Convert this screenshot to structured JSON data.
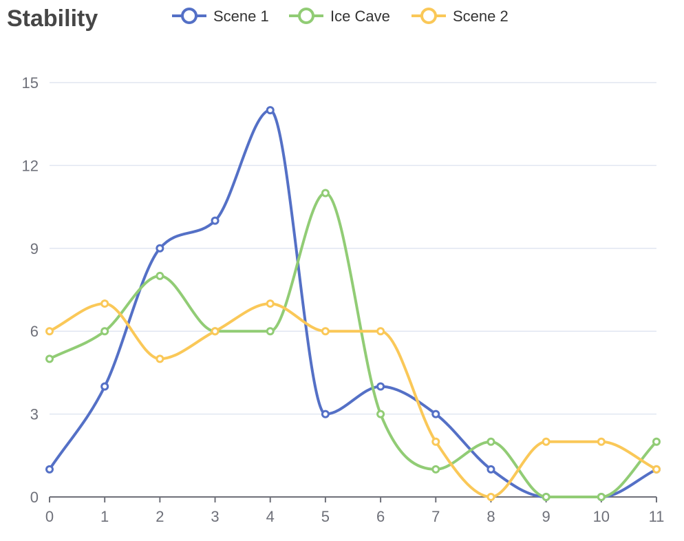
{
  "chart_data": {
    "type": "line",
    "smooth": true,
    "title": "Stability",
    "xlabel": "",
    "ylabel": "",
    "categories": [
      "0",
      "1",
      "2",
      "3",
      "4",
      "5",
      "6",
      "7",
      "8",
      "9",
      "10",
      "11"
    ],
    "ylim": [
      0,
      15
    ],
    "yticks": [
      0,
      3,
      6,
      9,
      12,
      15
    ],
    "grid": true,
    "legend_position": "top",
    "series": [
      {
        "name": "Scene 1",
        "color": "#5470c6",
        "values": [
          1,
          4,
          9,
          10,
          14,
          3,
          4,
          3,
          1,
          0,
          0,
          1
        ]
      },
      {
        "name": "Ice Cave",
        "color": "#91cc75",
        "values": [
          5,
          6,
          8,
          6,
          6,
          11,
          3,
          1,
          2,
          0,
          0,
          2
        ]
      },
      {
        "name": "Scene 2",
        "color": "#fac858",
        "values": [
          6,
          7,
          5,
          6,
          7,
          6,
          6,
          2,
          0,
          2,
          2,
          1
        ]
      }
    ]
  }
}
